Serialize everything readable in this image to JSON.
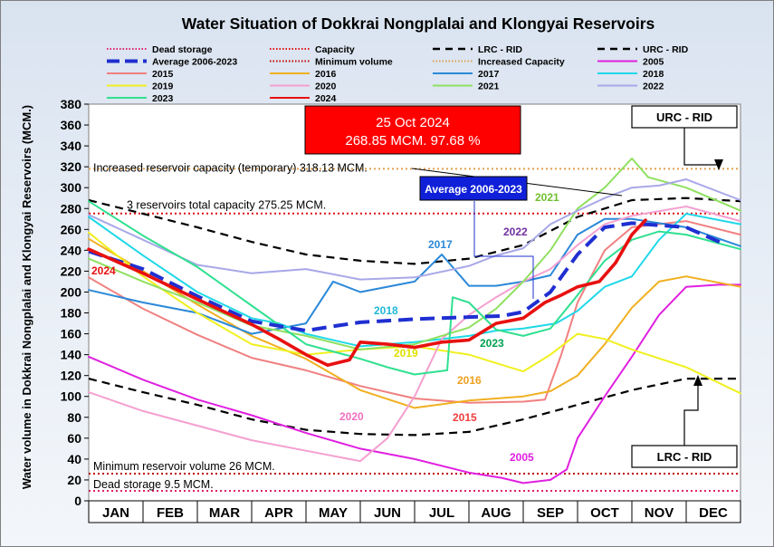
{
  "chart_data": {
    "type": "line",
    "title": "Water Situation of Dokkrai Nongplalai and Klongyai Reservoirs",
    "ylabel": "Water volume in Dokkrai Nongplalai and Klongyai Reservoirs (MCM.)",
    "ylim": [
      0,
      380
    ],
    "ytick_step": 20,
    "categories": [
      "JAN",
      "FEB",
      "MAR",
      "APR",
      "MAY",
      "JUN",
      "JUL",
      "AUG",
      "SEP",
      "OCT",
      "NOV",
      "DEC"
    ],
    "x_unit": "month (0 = 1 Jan, 12 = 31 Dec)",
    "legend_placement": "top",
    "reference_lines": [
      {
        "name": "Dead storage",
        "value": 9.5,
        "color": "#e0206a",
        "style": "dotted",
        "label": "Dead storage 9.5 MCM."
      },
      {
        "name": "Capacity",
        "value": 275.25,
        "color": "#e01010",
        "style": "dotted",
        "label": "3 reservoirs total capacity 275.25 MCM."
      },
      {
        "name": "Minimum volume",
        "value": 26,
        "color": "#c00000",
        "style": "dotted",
        "label": "Minimum reservoir volume 26 MCM."
      },
      {
        "name": "Increased Capacity",
        "value": 318.13,
        "color": "#e0a050",
        "style": "dotted",
        "label": "Increased reservoir capacity (temporary)  318.13 MCM."
      }
    ],
    "series": [
      {
        "name": "LRC - RID",
        "color": "#000000",
        "style": "dash",
        "width": 2.2,
        "points": [
          [
            0,
            117
          ],
          [
            1,
            104
          ],
          [
            2,
            92
          ],
          [
            3,
            78
          ],
          [
            4,
            68
          ],
          [
            5,
            64
          ],
          [
            6,
            63
          ],
          [
            7,
            66
          ],
          [
            8,
            78
          ],
          [
            9,
            92
          ],
          [
            10,
            106
          ],
          [
            11,
            117
          ],
          [
            12,
            117
          ]
        ]
      },
      {
        "name": "URC - RID",
        "color": "#000000",
        "style": "dash",
        "width": 2.2,
        "points": [
          [
            0,
            288
          ],
          [
            1,
            275
          ],
          [
            2,
            262
          ],
          [
            3,
            248
          ],
          [
            4,
            236
          ],
          [
            5,
            230
          ],
          [
            6,
            227
          ],
          [
            7,
            232
          ],
          [
            8,
            245
          ],
          [
            9,
            272
          ],
          [
            10,
            288
          ],
          [
            11,
            290
          ],
          [
            12,
            287
          ]
        ]
      },
      {
        "name": "Average 2006-2023",
        "color": "#1f2fd1",
        "style": "longdash",
        "width": 4,
        "points": [
          [
            0,
            239
          ],
          [
            1,
            222
          ],
          [
            2,
            196
          ],
          [
            3,
            172
          ],
          [
            4,
            163
          ],
          [
            4.6,
            168
          ],
          [
            5,
            171
          ],
          [
            6,
            174
          ],
          [
            7,
            176
          ],
          [
            7.6,
            177
          ],
          [
            8,
            181
          ],
          [
            8.5,
            200
          ],
          [
            9,
            236
          ],
          [
            9.5,
            262
          ],
          [
            10,
            266
          ],
          [
            11,
            262
          ],
          [
            11.7,
            246
          ]
        ]
      },
      {
        "name": "2005",
        "color": "#e020e0",
        "style": "solid",
        "width": 2,
        "points": [
          [
            0,
            138
          ],
          [
            1,
            116
          ],
          [
            2,
            97
          ],
          [
            3,
            82
          ],
          [
            4,
            65
          ],
          [
            5,
            50
          ],
          [
            6,
            40
          ],
          [
            7,
            27
          ],
          [
            7.6,
            22
          ],
          [
            8,
            17
          ],
          [
            8.5,
            20
          ],
          [
            8.8,
            30
          ],
          [
            9,
            60
          ],
          [
            9.5,
            100
          ],
          [
            10,
            138
          ],
          [
            10.5,
            178
          ],
          [
            11,
            205
          ],
          [
            11.6,
            207
          ],
          [
            12,
            207
          ]
        ]
      },
      {
        "name": "2015",
        "color": "#f08080",
        "style": "solid",
        "width": 2,
        "points": [
          [
            0,
            214
          ],
          [
            1,
            184
          ],
          [
            2,
            159
          ],
          [
            3,
            137
          ],
          [
            4,
            125
          ],
          [
            5,
            110
          ],
          [
            6,
            98
          ],
          [
            7,
            94
          ],
          [
            8,
            95
          ],
          [
            8.4,
            97
          ],
          [
            8.7,
            140
          ],
          [
            9,
            190
          ],
          [
            9.5,
            240
          ],
          [
            10,
            262
          ],
          [
            11,
            268
          ],
          [
            12,
            255
          ]
        ]
      },
      {
        "name": "2016",
        "color": "#f0b020",
        "style": "solid",
        "width": 2,
        "points": [
          [
            0,
            251
          ],
          [
            1,
            220
          ],
          [
            2,
            188
          ],
          [
            3,
            158
          ],
          [
            4,
            136
          ],
          [
            5,
            106
          ],
          [
            6,
            89
          ],
          [
            7,
            96
          ],
          [
            8,
            100
          ],
          [
            8.5,
            105
          ],
          [
            9,
            120
          ],
          [
            9.5,
            150
          ],
          [
            10,
            185
          ],
          [
            10.5,
            210
          ],
          [
            11,
            215
          ],
          [
            12,
            205
          ]
        ]
      },
      {
        "name": "2017",
        "color": "#2a88d8",
        "style": "solid",
        "width": 2,
        "points": [
          [
            0,
            202
          ],
          [
            1,
            190
          ],
          [
            2,
            180
          ],
          [
            3,
            160
          ],
          [
            4,
            170
          ],
          [
            4.5,
            210
          ],
          [
            5,
            200
          ],
          [
            6,
            210
          ],
          [
            6.5,
            236
          ],
          [
            7,
            206
          ],
          [
            7.5,
            206
          ],
          [
            8,
            210
          ],
          [
            8.5,
            216
          ],
          [
            9,
            255
          ],
          [
            9.5,
            270
          ],
          [
            10,
            270
          ],
          [
            11,
            262
          ],
          [
            12,
            244
          ]
        ]
      },
      {
        "name": "2018",
        "color": "#20d8e8",
        "style": "solid",
        "width": 2,
        "points": [
          [
            0,
            272
          ],
          [
            1,
            235
          ],
          [
            2,
            200
          ],
          [
            3,
            175
          ],
          [
            3.5,
            170
          ],
          [
            4,
            160
          ],
          [
            5,
            148
          ],
          [
            6,
            152
          ],
          [
            7,
            158
          ],
          [
            7.5,
            163
          ],
          [
            8,
            165
          ],
          [
            8.6,
            170
          ],
          [
            9,
            182
          ],
          [
            9.5,
            205
          ],
          [
            10,
            215
          ],
          [
            10.5,
            250
          ],
          [
            11,
            275
          ],
          [
            12,
            265
          ]
        ]
      },
      {
        "name": "2019",
        "color": "#f0f020",
        "style": "solid",
        "width": 2,
        "points": [
          [
            0,
            257
          ],
          [
            1,
            215
          ],
          [
            2,
            180
          ],
          [
            3,
            150
          ],
          [
            4,
            140
          ],
          [
            5,
            145
          ],
          [
            6,
            148
          ],
          [
            7,
            140
          ],
          [
            7.5,
            132
          ],
          [
            8,
            124
          ],
          [
            8.5,
            140
          ],
          [
            9,
            160
          ],
          [
            9.5,
            155
          ],
          [
            10,
            145
          ],
          [
            11,
            128
          ],
          [
            12,
            103
          ]
        ]
      },
      {
        "name": "2020",
        "color": "#f4a0d0",
        "style": "solid",
        "width": 2,
        "points": [
          [
            0,
            104
          ],
          [
            1,
            86
          ],
          [
            2,
            72
          ],
          [
            3,
            58
          ],
          [
            4,
            48
          ],
          [
            5,
            38
          ],
          [
            5.5,
            60
          ],
          [
            6,
            100
          ],
          [
            6.5,
            155
          ],
          [
            7,
            178
          ],
          [
            7.5,
            195
          ],
          [
            8,
            210
          ],
          [
            8.5,
            222
          ],
          [
            9,
            245
          ],
          [
            9.5,
            265
          ],
          [
            10,
            273
          ],
          [
            11,
            282
          ],
          [
            12,
            268
          ]
        ]
      },
      {
        "name": "2021",
        "color": "#90e060",
        "style": "solid",
        "width": 2,
        "points": [
          [
            0,
            232
          ],
          [
            1,
            210
          ],
          [
            2,
            190
          ],
          [
            3,
            168
          ],
          [
            4,
            158
          ],
          [
            5,
            145
          ],
          [
            6,
            150
          ],
          [
            7,
            166
          ],
          [
            7.5,
            184
          ],
          [
            8,
            210
          ],
          [
            8.5,
            240
          ],
          [
            9,
            280
          ],
          [
            9.5,
            300
          ],
          [
            10,
            328
          ],
          [
            10.3,
            310
          ],
          [
            11,
            300
          ],
          [
            12,
            278
          ]
        ]
      },
      {
        "name": "2022",
        "color": "#a8a8e8",
        "style": "solid",
        "width": 2,
        "points": [
          [
            0,
            274
          ],
          [
            1,
            250
          ],
          [
            2,
            226
          ],
          [
            3,
            218
          ],
          [
            4,
            222
          ],
          [
            5,
            212
          ],
          [
            6,
            214
          ],
          [
            7,
            225
          ],
          [
            7.5,
            235
          ],
          [
            8,
            242
          ],
          [
            8.5,
            265
          ],
          [
            9,
            278
          ],
          [
            9.5,
            290
          ],
          [
            10,
            300
          ],
          [
            10.5,
            302
          ],
          [
            11,
            308
          ],
          [
            12,
            288
          ]
        ]
      },
      {
        "name": "2023",
        "color": "#30e090",
        "style": "solid",
        "width": 2,
        "points": [
          [
            0,
            287
          ],
          [
            1,
            254
          ],
          [
            2,
            224
          ],
          [
            3,
            187
          ],
          [
            4,
            150
          ],
          [
            5,
            136
          ],
          [
            5.5,
            128
          ],
          [
            6,
            121
          ],
          [
            6.6,
            125
          ],
          [
            6.7,
            195
          ],
          [
            7,
            190
          ],
          [
            7.5,
            164
          ],
          [
            8,
            158
          ],
          [
            8.5,
            165
          ],
          [
            9,
            197
          ],
          [
            9.5,
            230
          ],
          [
            10,
            250
          ],
          [
            10.5,
            258
          ],
          [
            11,
            255
          ],
          [
            12,
            241
          ]
        ]
      },
      {
        "name": "2024",
        "color": "#e81010",
        "style": "solid",
        "width": 3.6,
        "points": [
          [
            0,
            241
          ],
          [
            1,
            218
          ],
          [
            2,
            193
          ],
          [
            3,
            169
          ],
          [
            3.5,
            155
          ],
          [
            4,
            140
          ],
          [
            4.4,
            130
          ],
          [
            4.8,
            135
          ],
          [
            5,
            152
          ],
          [
            5.5,
            150
          ],
          [
            6,
            147
          ],
          [
            6.5,
            152
          ],
          [
            7,
            154
          ],
          [
            7.5,
            170
          ],
          [
            8,
            175
          ],
          [
            8.4,
            190
          ],
          [
            8.7,
            197
          ],
          [
            9,
            205
          ],
          [
            9.4,
            210
          ],
          [
            9.7,
            228
          ],
          [
            10,
            255
          ],
          [
            10.25,
            268.85
          ]
        ]
      }
    ],
    "series_labels": [
      {
        "text": "2024",
        "color": "#e81010"
      },
      {
        "text": "2017",
        "color": "#2a88d8"
      },
      {
        "text": "2022",
        "color": "#7030a0"
      },
      {
        "text": "2021",
        "color": "#70c030"
      },
      {
        "text": "2018",
        "color": "#20b8d8"
      },
      {
        "text": "2019",
        "color": "#e0e000"
      },
      {
        "text": "2023",
        "color": "#00a050"
      },
      {
        "text": "2016",
        "color": "#f0a020"
      },
      {
        "text": "2015",
        "color": "#f04040"
      },
      {
        "text": "2020",
        "color": "#f070c0"
      },
      {
        "text": "2005",
        "color": "#e020e0"
      }
    ],
    "annotations": {
      "current_date": "25 Oct 2024",
      "current_value": "268.85 MCM. 97.68 %",
      "average_callout": "Average 2006-2023",
      "urc_callout": "URC - RID",
      "lrc_callout": "LRC - RID"
    },
    "legend": [
      {
        "label": "Dead storage",
        "color": "#e0206a",
        "style": "dotted"
      },
      {
        "label": "Capacity",
        "color": "#e01010",
        "style": "dotted"
      },
      {
        "label": "LRC - RID",
        "color": "#000000",
        "style": "dash"
      },
      {
        "label": "URC - RID",
        "color": "#000000",
        "style": "dash"
      },
      {
        "label": "Average 2006-2023",
        "color": "#1f2fd1",
        "style": "longdash"
      },
      {
        "label": "Minimum volume",
        "color": "#c00000",
        "style": "dotted"
      },
      {
        "label": "Increased Capacity",
        "color": "#e0a050",
        "style": "dotted"
      },
      {
        "label": "2005",
        "color": "#e020e0",
        "style": "solid"
      },
      {
        "label": "2015",
        "color": "#f08080",
        "style": "solid"
      },
      {
        "label": "2016",
        "color": "#f0b020",
        "style": "solid"
      },
      {
        "label": "2017",
        "color": "#2a88d8",
        "style": "solid"
      },
      {
        "label": "2018",
        "color": "#20d8e8",
        "style": "solid"
      },
      {
        "label": "2019",
        "color": "#f0f020",
        "style": "solid"
      },
      {
        "label": "2020",
        "color": "#f4a0d0",
        "style": "solid"
      },
      {
        "label": "2021",
        "color": "#90e060",
        "style": "solid"
      },
      {
        "label": "2022",
        "color": "#a8a8e8",
        "style": "solid"
      },
      {
        "label": "2023",
        "color": "#30e090",
        "style": "solid"
      },
      {
        "label": "2024",
        "color": "#e81010",
        "style": "solid"
      }
    ]
  }
}
